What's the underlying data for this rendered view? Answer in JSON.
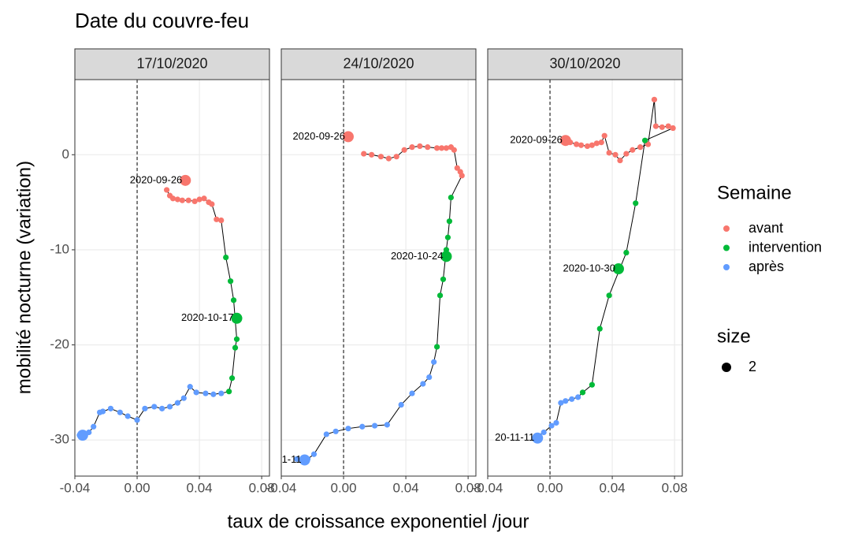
{
  "title": "Date du couvre-feu",
  "x_label": "taux de croissance exponentiel /jour",
  "y_label": "mobilité nocturne (variation)",
  "legend": {
    "title": "Semaine"
  },
  "size_legend": {
    "title": "size",
    "values": [
      2
    ]
  },
  "chart_data": [
    {
      "type": "scatter",
      "facet": "17/10/2020",
      "xlim": [
        -0.04,
        0.085
      ],
      "ylim": [
        -33.8,
        7.9
      ],
      "xticks": [
        -0.04,
        {
          "value": 0,
          "label": "0.00"
        },
        0.04,
        0.08
      ],
      "yticks": [
        -30,
        -20,
        -10,
        0
      ],
      "grid": true,
      "vline": 0,
      "series": [
        {
          "name": "avant",
          "color": "#F8766D",
          "x": [
            0.019,
            0.021,
            0.023,
            0.026,
            0.029,
            0.033,
            0.037,
            0.04,
            0.043,
            0.046,
            0.048,
            0.051,
            0.054
          ],
          "values": [
            -3.7,
            -4.3,
            -4.6,
            -4.7,
            -4.8,
            -4.8,
            -4.9,
            -4.7,
            -4.6,
            -5.0,
            -5.2,
            -6.8,
            -6.9
          ]
        },
        {
          "name": "intervention",
          "color": "#00BA38",
          "x": [
            0.057,
            0.06,
            0.062,
            0.064,
            0.063,
            0.061,
            0.059
          ],
          "values": [
            -10.8,
            -13.3,
            -15.3,
            -19.4,
            -20.3,
            -23.5,
            -24.9
          ]
        },
        {
          "name": "après",
          "color": "#619CFF",
          "x": [
            0.054,
            0.049,
            0.044,
            0.038,
            0.034,
            0.03,
            0.026,
            0.021,
            0.016,
            0.011,
            0.005,
            0.0,
            -0.006,
            -0.011,
            -0.017,
            -0.022,
            -0.024,
            -0.028,
            -0.031,
            -0.035,
            -0.037
          ],
          "values": [
            -25.1,
            -25.2,
            -25.1,
            -25.0,
            -24.4,
            -25.6,
            -26.1,
            -26.5,
            -26.7,
            -26.5,
            -26.7,
            -27.9,
            -27.5,
            -27.1,
            -26.7,
            -27.0,
            -27.1,
            -28.6,
            -29.2,
            -29.5,
            -29.5
          ]
        }
      ],
      "highlights": [
        {
          "x": 0.031,
          "y": -2.7,
          "color": "#F8766D",
          "label": "2020-09-26"
        },
        {
          "x": 0.064,
          "y": -17.2,
          "color": "#00BA38",
          "label": "2020-10-17"
        },
        {
          "x": -0.035,
          "y": -29.5,
          "color": "#619CFF"
        }
      ]
    },
    {
      "type": "scatter",
      "facet": "24/10/2020",
      "xlim": [
        -0.04,
        0.085
      ],
      "ylim": [
        -33.8,
        7.9
      ],
      "xticks": [
        -0.04,
        {
          "value": 0,
          "label": "0.00"
        },
        0.04,
        0.08
      ],
      "yticks": [
        -30,
        -20,
        -10,
        0
      ],
      "grid": true,
      "vline": 0,
      "series": [
        {
          "name": "avant",
          "color": "#F8766D",
          "x": [
            0.013,
            0.018,
            0.024,
            0.029,
            0.034,
            0.039,
            0.044,
            0.049,
            0.054,
            0.06,
            0.063,
            0.066,
            0.069,
            0.071,
            0.073,
            0.075,
            0.076
          ],
          "values": [
            0.1,
            0,
            -0.2,
            -0.4,
            -0.2,
            0.5,
            0.8,
            0.9,
            0.8,
            0.7,
            0.7,
            0.7,
            0.8,
            0.5,
            -1.4,
            -1.8,
            -2.2
          ]
        },
        {
          "name": "intervention",
          "color": "#00BA38",
          "x": [
            0.069,
            0.068,
            0.067,
            0.066,
            0.064,
            0.062,
            0.06
          ],
          "values": [
            -4.5,
            -7.0,
            -8.7,
            -10.0,
            -13.1,
            -14.8,
            -20.2
          ]
        },
        {
          "name": "après",
          "color": "#619CFF",
          "x": [
            0.058,
            0.055,
            0.051,
            0.044,
            0.037,
            0.028,
            0.02,
            0.012,
            0.003,
            -0.005,
            -0.011,
            -0.019,
            -0.023,
            -0.026,
            -0.03
          ],
          "values": [
            -21.8,
            -23.4,
            -24.1,
            -25.1,
            -26.3,
            -28.4,
            -28.5,
            -28.6,
            -28.8,
            -29.1,
            -29.4,
            -31.5,
            -32.0,
            -32.1,
            -32.0
          ]
        }
      ],
      "highlights": [
        {
          "x": 0.003,
          "y": 1.9,
          "color": "#F8766D",
          "label": "2020-09-26"
        },
        {
          "x": 0.066,
          "y": -10.7,
          "color": "#00BA38",
          "label": "2020-10-24"
        },
        {
          "x": -0.025,
          "y": -32.1,
          "color": "#619CFF",
          "label": "1-11"
        }
      ]
    },
    {
      "type": "scatter",
      "facet": "30/10/2020",
      "xlim": [
        -0.04,
        0.085
      ],
      "ylim": [
        -33.8,
        7.9
      ],
      "xticks": [
        -0.04,
        {
          "value": 0,
          "label": "0.00"
        },
        0.04,
        0.08
      ],
      "yticks": [
        -30,
        -20,
        -10,
        0
      ],
      "grid": true,
      "vline": 0,
      "series": [
        {
          "name": "avant",
          "color": "#F8766D",
          "x": [
            0.013,
            0.017,
            0.02,
            0.024,
            0.027,
            0.03,
            0.033,
            0.035,
            0.038,
            0.042,
            0.045,
            0.049,
            0.053,
            0.058,
            0.063,
            0.067,
            0.068,
            0.072,
            0.076,
            0.079
          ],
          "values": [
            1.3,
            1.1,
            1.0,
            0.9,
            1.0,
            1.2,
            1.3,
            2.0,
            0.2,
            0,
            -0.6,
            0.1,
            0.5,
            0.8,
            1.1,
            5.8,
            3.0,
            2.9,
            3.0,
            2.8
          ]
        },
        {
          "name": "intervention",
          "color": "#00BA38",
          "x": [
            0.061,
            0.055,
            0.049,
            0.038,
            0.032,
            0.027,
            0.021
          ],
          "values": [
            1.5,
            -5.1,
            -10.3,
            -14.8,
            -18.3,
            -24.2,
            -25.0
          ]
        },
        {
          "name": "après",
          "color": "#619CFF",
          "x": [
            0.018,
            0.014,
            0.01,
            0.007,
            0.004,
            0.001,
            -0.004,
            -0.008,
            -0.01
          ],
          "values": [
            -25.5,
            -25.7,
            -25.9,
            -26.1,
            -28.2,
            -28.5,
            -29.2,
            -29.6,
            -29.9
          ]
        }
      ],
      "highlights": [
        {
          "x": 0.01,
          "y": 1.5,
          "color": "#F8766D",
          "label": "2020-09-26"
        },
        {
          "x": 0.044,
          "y": -12.0,
          "color": "#00BA38",
          "label": "2020-10-30"
        },
        {
          "x": -0.008,
          "y": -29.8,
          "color": "#619CFF",
          "label": "20-11-11"
        }
      ]
    }
  ]
}
